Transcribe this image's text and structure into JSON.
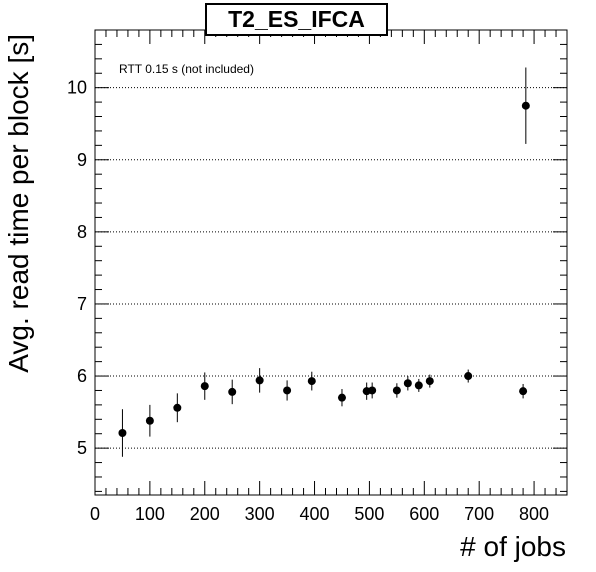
{
  "chart_data": {
    "type": "scatter",
    "title": "T2_ES_IFCA",
    "xlabel": "# of jobs",
    "ylabel": "Avg. read time per block [s]",
    "annotation": "RTT 0.15 s (not included)",
    "xlim": [
      0,
      860
    ],
    "ylim": [
      4.35,
      10.8
    ],
    "x_ticks": [
      0,
      100,
      200,
      300,
      400,
      500,
      600,
      700,
      800
    ],
    "y_ticks": [
      5,
      6,
      7,
      8,
      9,
      10
    ],
    "grid": "horizontal dotted at major y ticks",
    "marker_color": "#000000",
    "points": [
      {
        "x": 50,
        "y": 5.21,
        "err": 0.33
      },
      {
        "x": 100,
        "y": 5.38,
        "err": 0.22
      },
      {
        "x": 150,
        "y": 5.56,
        "err": 0.2
      },
      {
        "x": 200,
        "y": 5.86,
        "err": 0.19
      },
      {
        "x": 250,
        "y": 5.78,
        "err": 0.17
      },
      {
        "x": 300,
        "y": 5.94,
        "err": 0.17
      },
      {
        "x": 350,
        "y": 5.8,
        "err": 0.14
      },
      {
        "x": 395,
        "y": 5.93,
        "err": 0.13
      },
      {
        "x": 450,
        "y": 5.7,
        "err": 0.12
      },
      {
        "x": 495,
        "y": 5.79,
        "err": 0.12
      },
      {
        "x": 505,
        "y": 5.8,
        "err": 0.11
      },
      {
        "x": 550,
        "y": 5.8,
        "err": 0.1
      },
      {
        "x": 570,
        "y": 5.9,
        "err": 0.1
      },
      {
        "x": 590,
        "y": 5.87,
        "err": 0.09
      },
      {
        "x": 610,
        "y": 5.93,
        "err": 0.09
      },
      {
        "x": 680,
        "y": 6.0,
        "err": 0.09
      },
      {
        "x": 780,
        "y": 5.79,
        "err": 0.1
      },
      {
        "x": 785,
        "y": 9.75,
        "err": 0.53
      }
    ]
  }
}
